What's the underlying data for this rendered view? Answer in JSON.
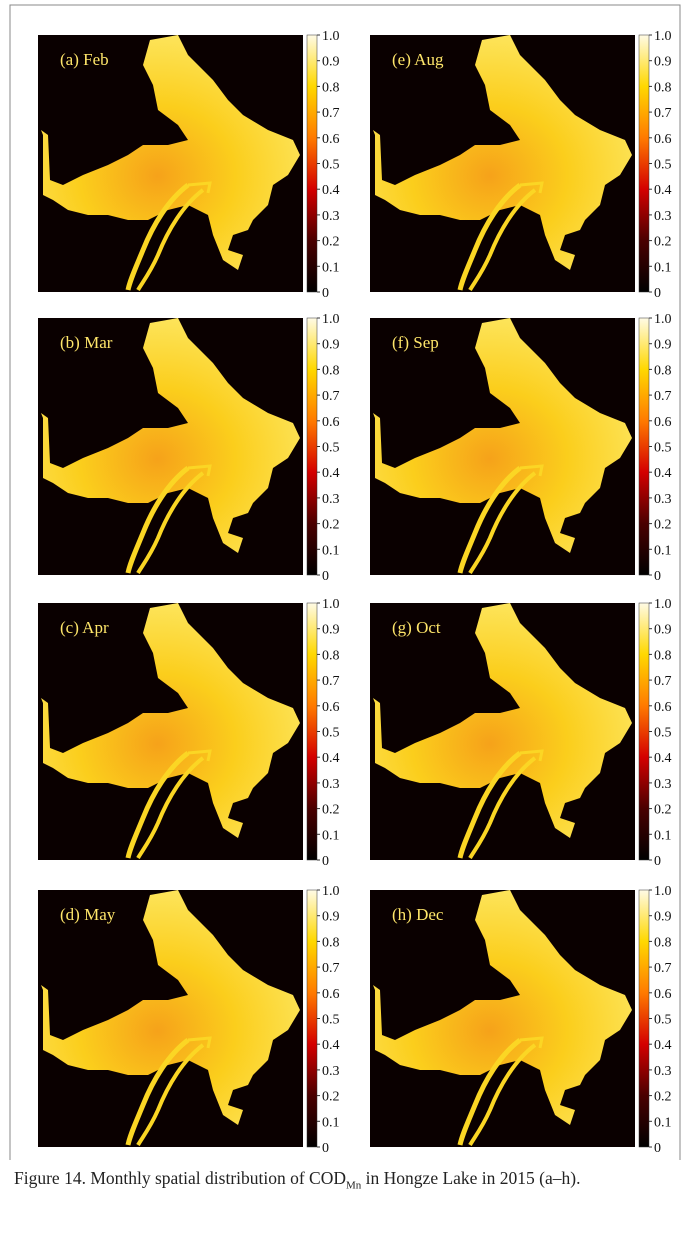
{
  "panels": [
    {
      "label": "(a) Feb"
    },
    {
      "label": "(e) Aug"
    },
    {
      "label": "(b) Mar"
    },
    {
      "label": "(f) Sep"
    },
    {
      "label": "(c) Apr"
    },
    {
      "label": "(g) Oct"
    },
    {
      "label": "(d) May"
    },
    {
      "label": "(h) Dec"
    }
  ],
  "colorbar_ticks": [
    "0",
    "0.1",
    "0.2",
    "0.3",
    "0.4",
    "0.5",
    "0.6",
    "0.7",
    "0.8",
    "0.9",
    "1.0"
  ],
  "caption": {
    "before": "Figure 14. Monthly spatial distribution of COD",
    "subscript": "Mn",
    "after": " in Hongze Lake in 2015 (a–h)."
  }
}
